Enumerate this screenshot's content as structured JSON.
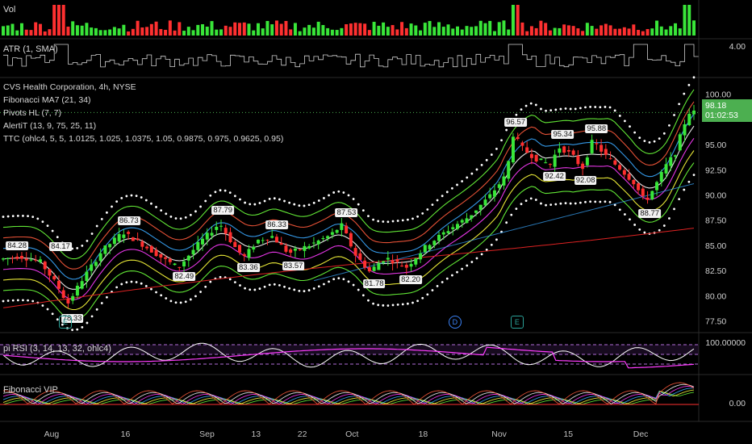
{
  "chart_data": {
    "type": "candlestick",
    "symbol_title": "CVS Health Corporation, 4h, NYSE",
    "indicators": [
      "Fibonacci MA7 (21, 34)",
      "Pivots HL (7, 7)",
      "AlertiT (13, 9, 75, 25, 11)",
      "TTC (ohlc4, 5, 5, 1.0125, 1.025, 1.0375, 1.05, 0.9875, 0.975, 0.9625, 0.95)"
    ],
    "ylim": [
      76.5,
      101.5
    ],
    "y_ticks": [
      "100.00",
      "95.00",
      "92.50",
      "90.00",
      "87.50",
      "85.00",
      "82.50",
      "80.00",
      "77.50"
    ],
    "x_ticks": [
      "Aug",
      "16",
      "Sep",
      "13",
      "22",
      "Oct",
      "18",
      "Nov",
      "15",
      "Dec"
    ],
    "last_price": "98.18",
    "countdown": "01:02:53",
    "pivots": [
      {
        "label": "84.28",
        "t": 0.02,
        "v": 84.28,
        "kind": "high"
      },
      {
        "label": "84.17",
        "t": 0.083,
        "v": 84.17,
        "kind": "high"
      },
      {
        "label": "78.33",
        "t": 0.1,
        "v": 78.33,
        "kind": "low"
      },
      {
        "label": "86.73",
        "t": 0.182,
        "v": 86.73,
        "kind": "high"
      },
      {
        "label": "82.49",
        "t": 0.262,
        "v": 82.49,
        "kind": "low"
      },
      {
        "label": "87.79",
        "t": 0.318,
        "v": 87.79,
        "kind": "high"
      },
      {
        "label": "83.36",
        "t": 0.355,
        "v": 83.36,
        "kind": "low"
      },
      {
        "label": "86.33",
        "t": 0.396,
        "v": 86.33,
        "kind": "high"
      },
      {
        "label": "83.57",
        "t": 0.42,
        "v": 83.57,
        "kind": "low"
      },
      {
        "label": "87.53",
        "t": 0.497,
        "v": 87.53,
        "kind": "high"
      },
      {
        "label": "81.78",
        "t": 0.537,
        "v": 81.78,
        "kind": "low"
      },
      {
        "label": "82.20",
        "t": 0.59,
        "v": 82.2,
        "kind": "low"
      },
      {
        "label": "96.57",
        "t": 0.742,
        "v": 96.57,
        "kind": "high"
      },
      {
        "label": "95.34",
        "t": 0.81,
        "v": 95.34,
        "kind": "high"
      },
      {
        "label": "92.42",
        "t": 0.798,
        "v": 92.42,
        "kind": "low"
      },
      {
        "label": "95.88",
        "t": 0.859,
        "v": 95.88,
        "kind": "high"
      },
      {
        "label": "92.08",
        "t": 0.843,
        "v": 92.08,
        "kind": "low"
      },
      {
        "label": "88.77",
        "t": 0.936,
        "v": 88.77,
        "kind": "low"
      }
    ],
    "events": [
      {
        "label": "E",
        "t": 0.09,
        "kind": "earnings"
      },
      {
        "label": "D",
        "t": 0.654,
        "kind": "dividend"
      },
      {
        "label": "E",
        "t": 0.744,
        "kind": "earnings"
      }
    ],
    "price_path": [
      [
        0.0,
        83.6
      ],
      [
        0.03,
        83.9
      ],
      [
        0.06,
        83.4
      ],
      [
        0.085,
        81.0
      ],
      [
        0.1,
        79.2
      ],
      [
        0.12,
        81.5
      ],
      [
        0.15,
        84.5
      ],
      [
        0.18,
        86.3
      ],
      [
        0.21,
        85.0
      ],
      [
        0.24,
        83.6
      ],
      [
        0.26,
        82.8
      ],
      [
        0.29,
        85.2
      ],
      [
        0.32,
        87.2
      ],
      [
        0.34,
        85.0
      ],
      [
        0.355,
        83.8
      ],
      [
        0.375,
        85.5
      ],
      [
        0.396,
        85.9
      ],
      [
        0.42,
        84.2
      ],
      [
        0.45,
        85.0
      ],
      [
        0.48,
        86.0
      ],
      [
        0.497,
        87.0
      ],
      [
        0.515,
        84.2
      ],
      [
        0.537,
        82.4
      ],
      [
        0.56,
        83.8
      ],
      [
        0.59,
        82.8
      ],
      [
        0.62,
        85.0
      ],
      [
        0.65,
        86.5
      ],
      [
        0.68,
        87.8
      ],
      [
        0.71,
        89.8
      ],
      [
        0.735,
        92.0
      ],
      [
        0.745,
        96.0
      ],
      [
        0.76,
        94.5
      ],
      [
        0.78,
        93.5
      ],
      [
        0.8,
        93.0
      ],
      [
        0.81,
        94.8
      ],
      [
        0.83,
        94.0
      ],
      [
        0.845,
        92.6
      ],
      [
        0.86,
        95.4
      ],
      [
        0.88,
        93.8
      ],
      [
        0.9,
        92.6
      ],
      [
        0.92,
        91.2
      ],
      [
        0.936,
        89.3
      ],
      [
        0.95,
        90.8
      ],
      [
        0.965,
        92.8
      ],
      [
        0.98,
        94.2
      ],
      [
        0.99,
        96.6
      ],
      [
        1.0,
        98.2
      ]
    ],
    "rsi_pane": {
      "label": "pi RSI (3, 14, 13, 32, ohlc4)",
      "tick": "100.00000"
    },
    "vip_pane": {
      "label": "Fibonacci VIP",
      "tick": "0.00"
    },
    "atr_pane": {
      "label": "ATR (1, SMA)",
      "tick": "4.00"
    },
    "vol_pane": {
      "label": "Vol"
    }
  },
  "colors": {
    "up": "#39e639",
    "down": "#ff3030",
    "dots": "#ffffff"
  }
}
